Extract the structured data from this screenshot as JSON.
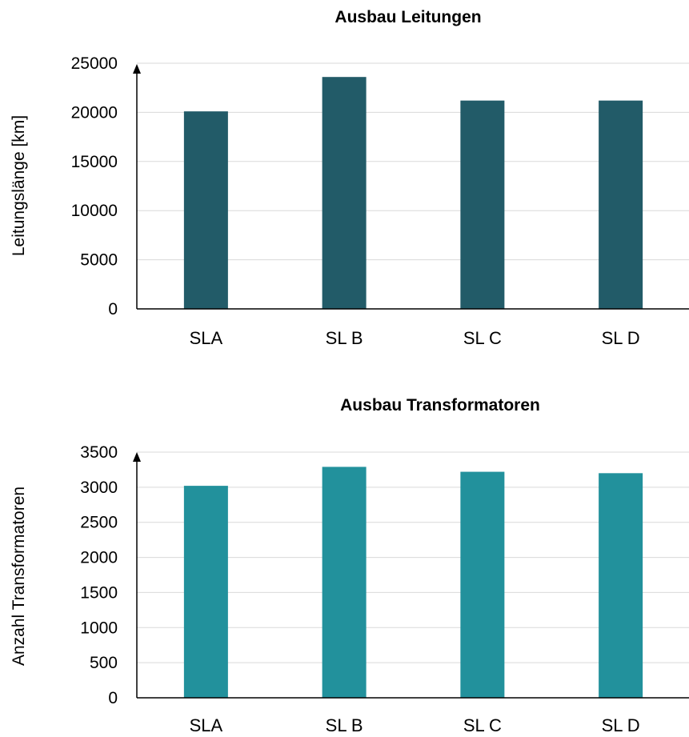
{
  "chart_data": [
    {
      "type": "bar",
      "title": "Ausbau Leitungen",
      "xlabel": "",
      "ylabel": "Leitungslänge [km]",
      "categories": [
        "SLA",
        "SL B",
        "SL C",
        "SL D"
      ],
      "values": [
        20100,
        23600,
        21200,
        21200
      ],
      "ylim": [
        0,
        25000
      ],
      "yticks": [
        0,
        5000,
        10000,
        15000,
        20000,
        25000
      ],
      "grid": true,
      "color": "#225b68"
    },
    {
      "type": "bar",
      "title": "Ausbau Transformatoren",
      "xlabel": "",
      "ylabel": "Anzahl Transformatoren",
      "categories": [
        "SLA",
        "SL B",
        "SL C",
        "SL D"
      ],
      "values": [
        3020,
        3290,
        3220,
        3200
      ],
      "ylim": [
        0,
        3500
      ],
      "yticks": [
        0,
        500,
        1000,
        1500,
        2000,
        2500,
        3000,
        3500
      ],
      "grid": true,
      "color": "#22919c"
    }
  ]
}
